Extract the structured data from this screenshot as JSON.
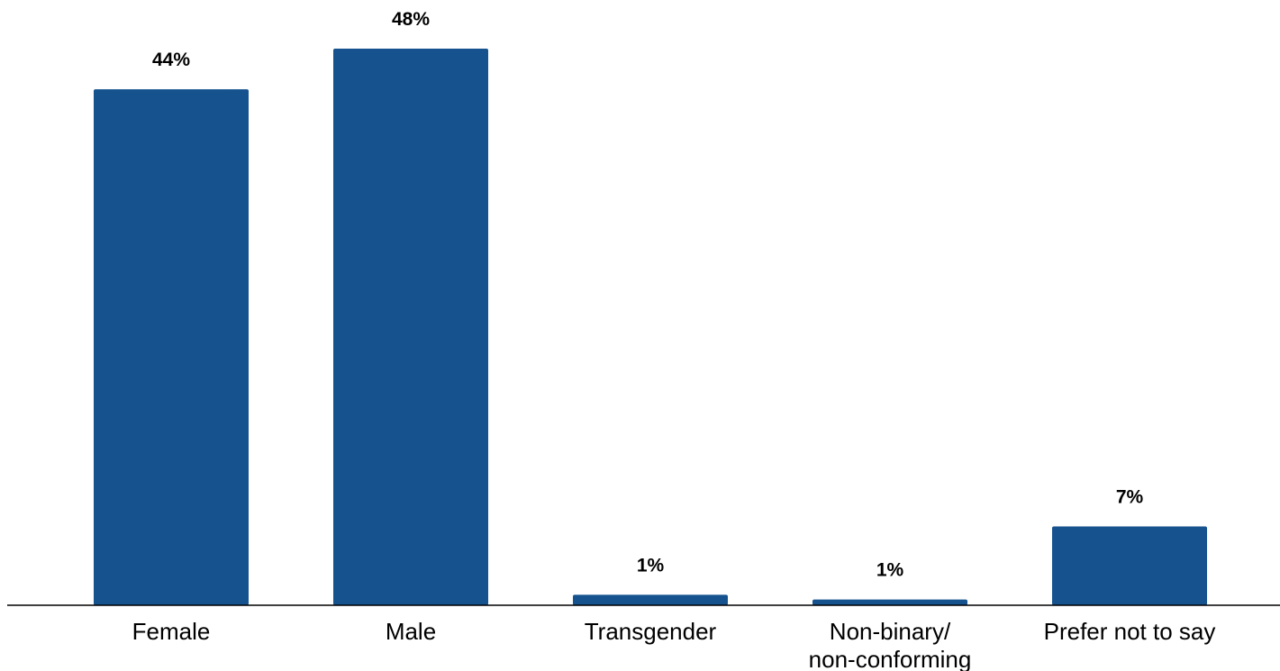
{
  "chart_data": {
    "type": "bar",
    "title": "",
    "xlabel": "",
    "ylabel": "",
    "categories": [
      "Female",
      "Male",
      "Transgender",
      "Non-binary/ non-conforming",
      "Prefer not to say"
    ],
    "category_lines": [
      [
        "Female"
      ],
      [
        "Male"
      ],
      [
        "Transgender"
      ],
      [
        "Non-binary/",
        "non-conforming"
      ],
      [
        "Prefer not to say"
      ]
    ],
    "values": [
      44,
      48,
      1,
      1,
      7
    ],
    "bar_values": [
      44.5,
      48.0,
      0.9,
      0.5,
      6.8
    ],
    "data_labels": [
      "44%",
      "48%",
      "1%",
      "1%",
      "7%"
    ],
    "ylim": [
      0,
      48
    ],
    "grid": false,
    "legend": "none",
    "colors": {
      "bar": "#15528e",
      "axis": "#000000",
      "text": "#000000"
    }
  }
}
